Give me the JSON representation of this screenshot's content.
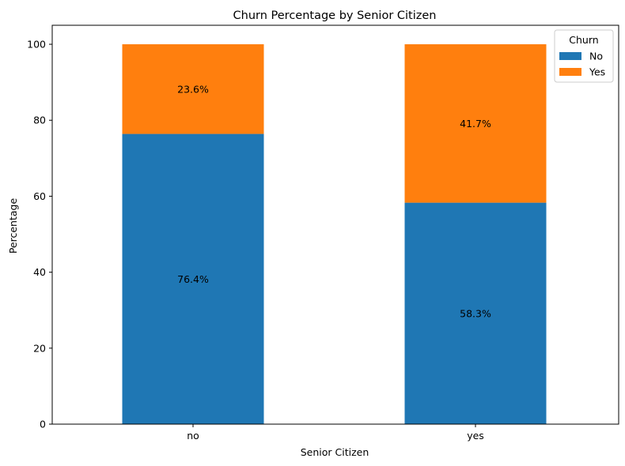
{
  "chart_data": {
    "type": "bar",
    "stacked": true,
    "title": "Churn Percentage by Senior Citizen",
    "xlabel": "Senior Citizen",
    "ylabel": "Percentage",
    "categories": [
      "no",
      "yes"
    ],
    "ylim": [
      0,
      105
    ],
    "yticks": [
      "0",
      "20",
      "40",
      "60",
      "80",
      "100"
    ],
    "grid": false,
    "legend": {
      "title": "Churn",
      "placement": "top-right"
    },
    "series": [
      {
        "name": "No",
        "color": "#1f77b4",
        "values": [
          76.4,
          58.3
        ],
        "labels": [
          "76.4%",
          "58.3%"
        ]
      },
      {
        "name": "Yes",
        "color": "#ff7f0e",
        "values": [
          23.6,
          41.7
        ],
        "labels": [
          "23.6%",
          "41.7%"
        ]
      }
    ]
  }
}
